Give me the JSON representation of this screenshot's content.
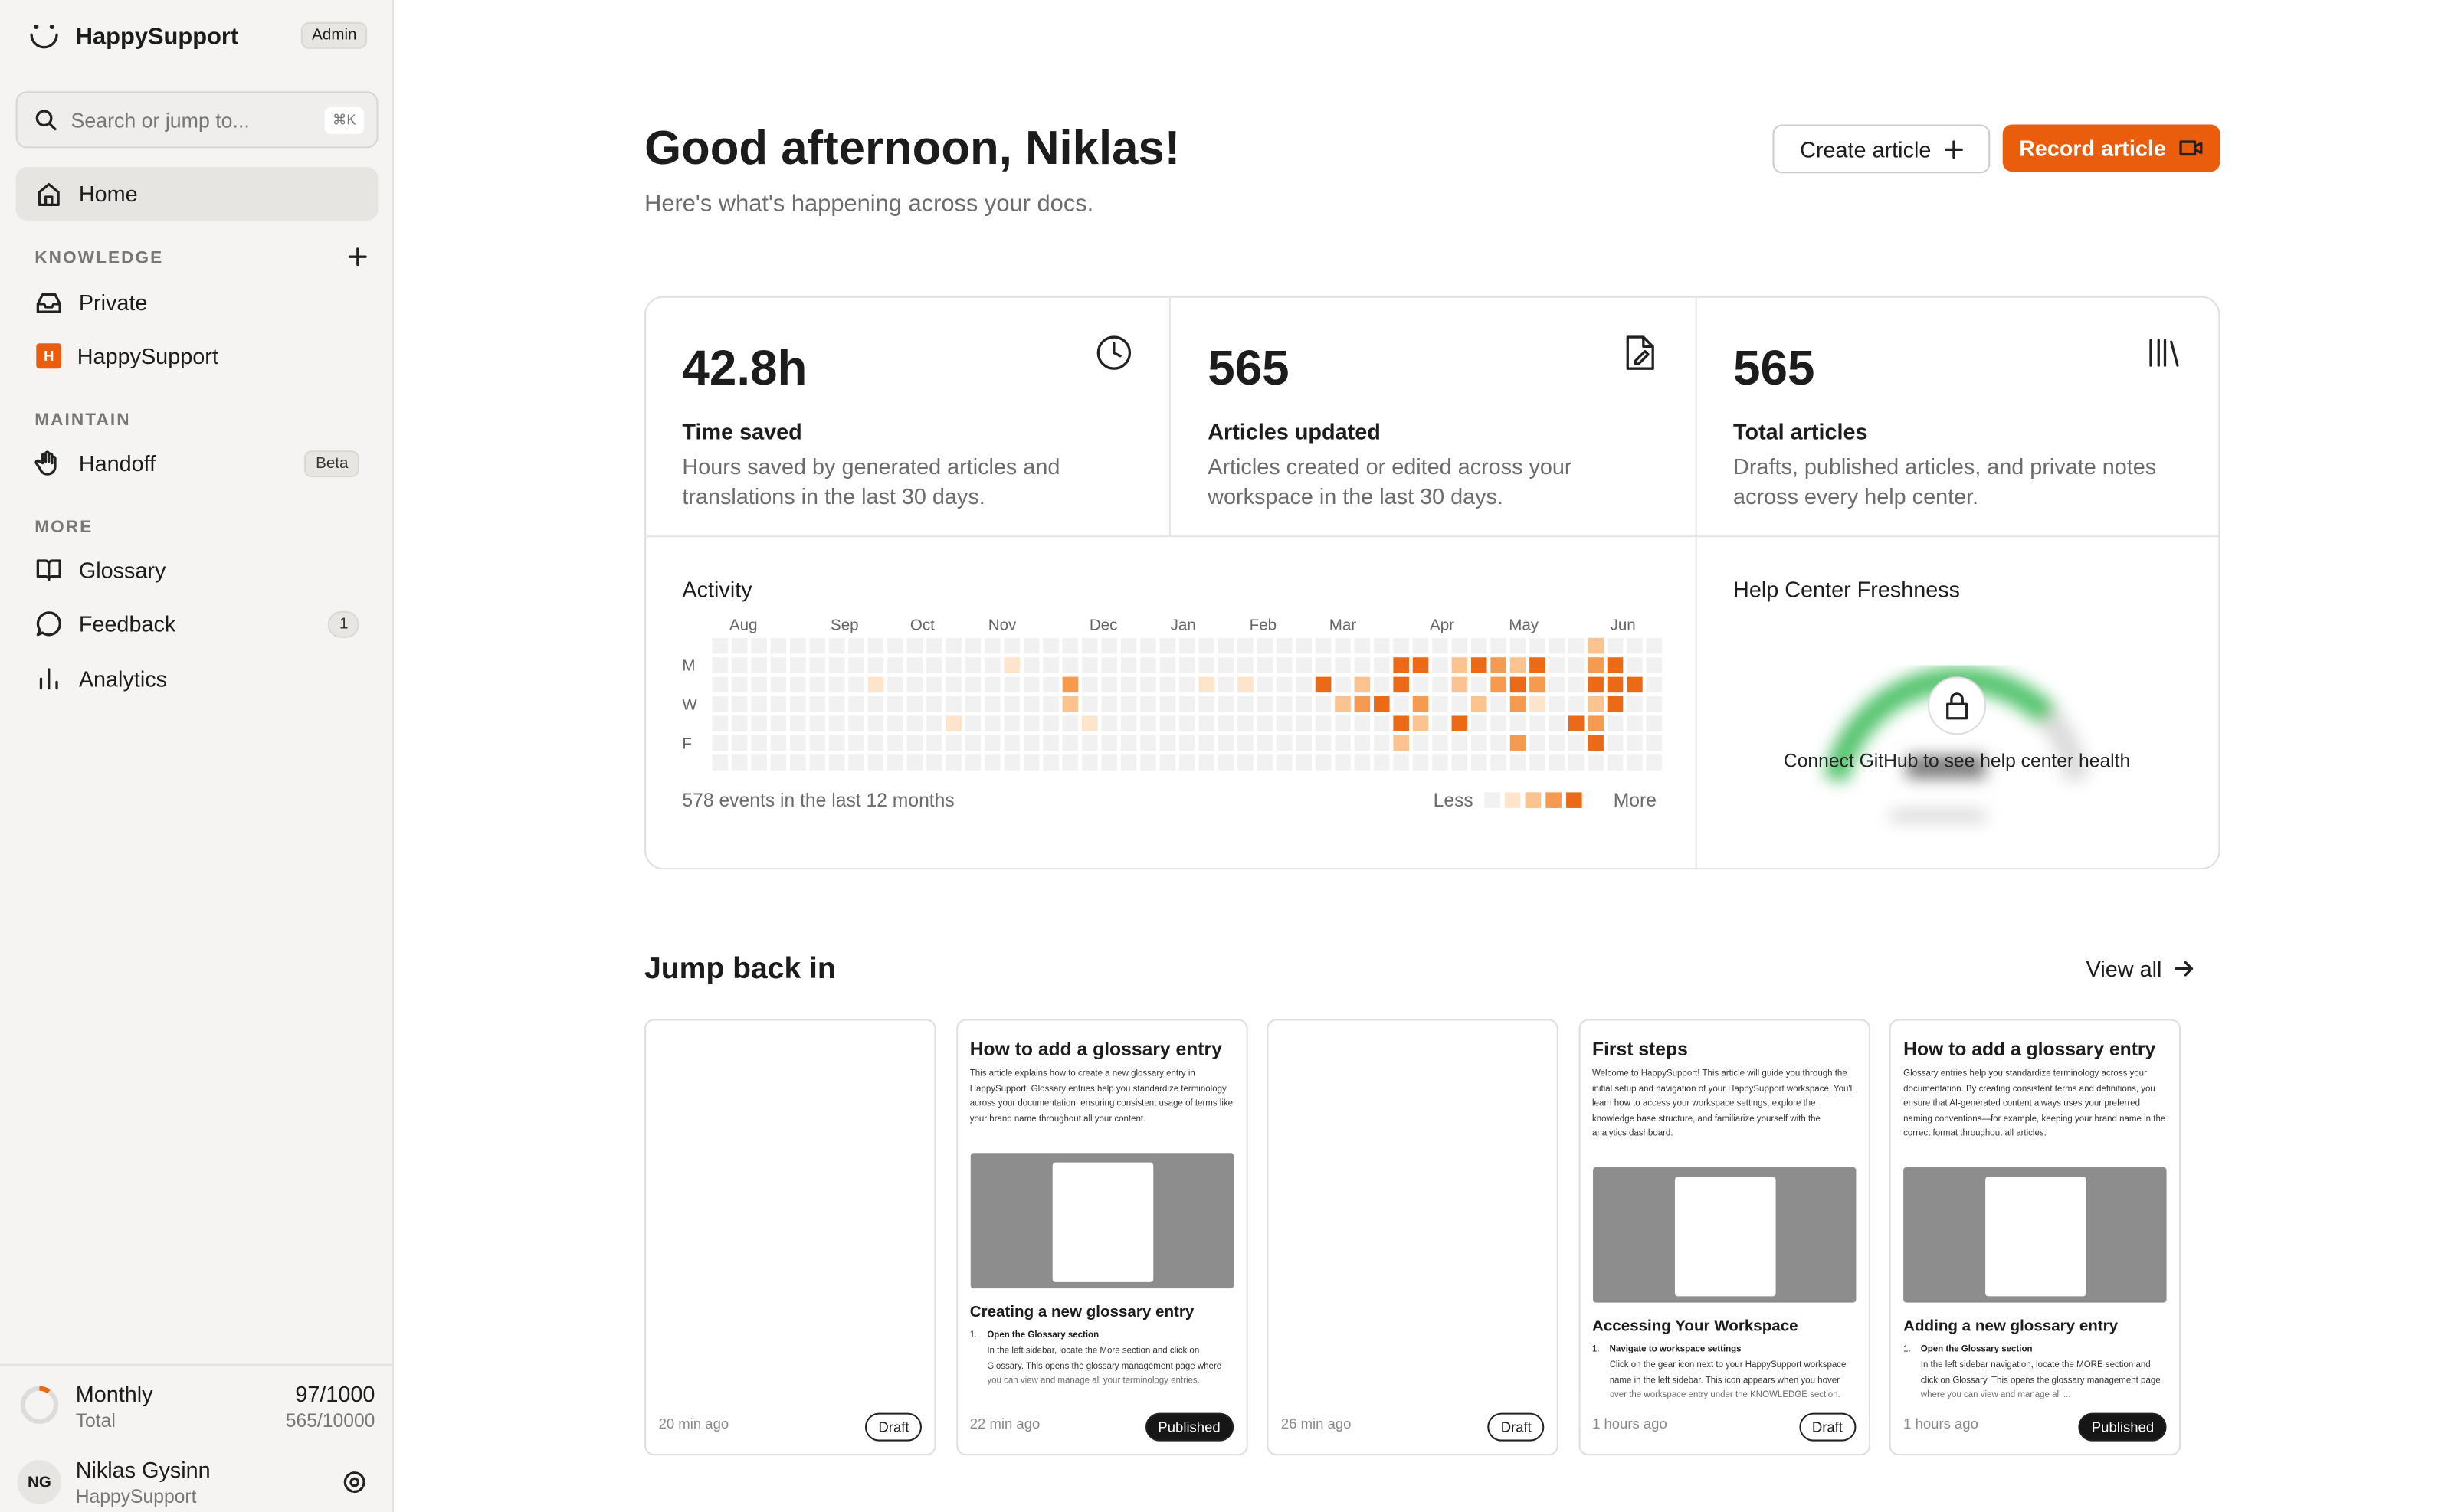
{
  "sidebar": {
    "brand": "HappySupport",
    "role": "Admin",
    "search": "Search or jump to...",
    "shortcut": "⌘K",
    "home": "Home",
    "knowledge": {
      "title": "KNOWLEDGE",
      "private": "Private",
      "workspace_icon": "H",
      "workspace": "HappySupport"
    },
    "maintain": {
      "title": "MAINTAIN",
      "handoff": "Handoff",
      "badge": "Beta"
    },
    "more": {
      "title": "MORE",
      "glossary": "Glossary",
      "feedback": "Feedback",
      "feedback_count": "1",
      "analytics": "Analytics"
    },
    "usage": {
      "period": "Monthly",
      "period_value": "97/1000",
      "total": "Total",
      "total_value": "565/10000"
    },
    "user": {
      "initials": "NG",
      "name": "Niklas Gysinn",
      "workspace": "HappySupport"
    }
  },
  "header": {
    "title": "Good afternoon, Niklas!",
    "subtitle": "Here's what's happening across your docs.",
    "create": "Create article",
    "record": "Record article"
  },
  "stats": [
    {
      "value": "42.8h",
      "label": "Time saved",
      "description": "Hours saved by generated articles and translations in the last 30 days."
    },
    {
      "value": "565",
      "label": "Articles updated",
      "description": "Articles created or edited across your workspace in the last 30 days."
    },
    {
      "value": "565",
      "label": "Total articles",
      "description": "Drafts, published articles, and private notes across every help center."
    }
  ],
  "activity": {
    "title": "Activity",
    "months": [
      "Aug",
      "Sep",
      "Oct",
      "Nov",
      "Dec",
      "Jan",
      "Feb",
      "Mar",
      "Apr",
      "May",
      "Jun"
    ],
    "days": [
      "M",
      "W",
      "F"
    ],
    "summary": "578 events in the last 12 months",
    "less": "Less",
    "more": "More",
    "colors": [
      "#f1f1f1",
      "#fde4cc",
      "#fbc38f",
      "#f59a4f",
      "#ea6a18"
    ],
    "cells": [
      [
        45,
        0,
        2
      ],
      [
        15,
        1,
        1
      ],
      [
        35,
        1,
        4
      ],
      [
        36,
        1,
        4
      ],
      [
        38,
        1,
        2
      ],
      [
        39,
        1,
        4
      ],
      [
        40,
        1,
        3
      ],
      [
        41,
        1,
        2
      ],
      [
        42,
        1,
        4
      ],
      [
        45,
        1,
        3
      ],
      [
        46,
        1,
        4
      ],
      [
        8,
        2,
        1
      ],
      [
        18,
        2,
        3
      ],
      [
        25,
        2,
        1
      ],
      [
        27,
        2,
        1
      ],
      [
        31,
        2,
        4
      ],
      [
        33,
        2,
        2
      ],
      [
        35,
        2,
        4
      ],
      [
        38,
        2,
        2
      ],
      [
        40,
        2,
        3
      ],
      [
        41,
        2,
        4
      ],
      [
        42,
        2,
        3
      ],
      [
        45,
        2,
        4
      ],
      [
        46,
        2,
        4
      ],
      [
        47,
        2,
        4
      ],
      [
        18,
        3,
        2
      ],
      [
        32,
        3,
        2
      ],
      [
        33,
        3,
        3
      ],
      [
        34,
        3,
        4
      ],
      [
        36,
        3,
        3
      ],
      [
        39,
        3,
        2
      ],
      [
        41,
        3,
        3
      ],
      [
        42,
        3,
        1
      ],
      [
        45,
        3,
        2
      ],
      [
        46,
        3,
        4
      ],
      [
        12,
        4,
        1
      ],
      [
        19,
        4,
        1
      ],
      [
        35,
        4,
        4
      ],
      [
        36,
        4,
        2
      ],
      [
        38,
        4,
        4
      ],
      [
        44,
        4,
        4
      ],
      [
        45,
        4,
        3
      ],
      [
        35,
        5,
        2
      ],
      [
        41,
        5,
        3
      ],
      [
        45,
        5,
        4
      ]
    ]
  },
  "freshness": {
    "title": "Help Center Freshness",
    "message": "Connect GitHub to see help center health"
  },
  "recent": {
    "title": "Jump back in",
    "view_all": "View all",
    "cards": [
      {
        "time": "20 min ago",
        "status": "Draft"
      },
      {
        "title": "How to add a glossary entry",
        "body": "This article explains how to create a new glossary entry in HappySupport. Glossary entries help you standardize terminology across your documentation, ensuring consistent usage of terms like your brand name throughout all your content.",
        "heading": "Creating a new glossary entry",
        "step_number": "1.",
        "step": "Open the Glossary section",
        "step_text": "In the left sidebar, locate the More section and click on Glossary. This opens the glossary management page where you can view and manage all your terminology entries.",
        "time": "22 min ago",
        "status": "Published"
      },
      {
        "time": "26 min ago",
        "status": "Draft"
      },
      {
        "title": "First steps",
        "body": "Welcome to HappySupport! This article will guide you through the initial setup and navigation of your HappySupport workspace. You'll learn how to access your workspace settings, explore the knowledge base structure, and familiarize yourself with the analytics dashboard.",
        "heading": "Accessing Your Workspace",
        "step_number": "1.",
        "step": "Navigate to workspace settings",
        "step_text": "Click on the gear icon next to your HappySupport workspace name in the left sidebar. This icon appears when you hover over the workspace entry under the KNOWLEDGE section.",
        "time": "1 hours ago",
        "status": "Draft"
      },
      {
        "title": "How to add a glossary entry",
        "body": "Glossary entries help you standardize terminology across your documentation. By creating consistent terms and definitions, you ensure that AI-generated content always uses your preferred naming conventions—for example, keeping your brand name in the correct format throughout all articles.",
        "heading": "Adding a new glossary entry",
        "step_number": "1.",
        "step": "Open the Glossary section",
        "step_text": "In the left sidebar navigation, locate the MORE section and click on Glossary. This opens the glossary management page where you can view and manage all ...",
        "time": "1 hours ago",
        "status": "Published"
      }
    ]
  }
}
